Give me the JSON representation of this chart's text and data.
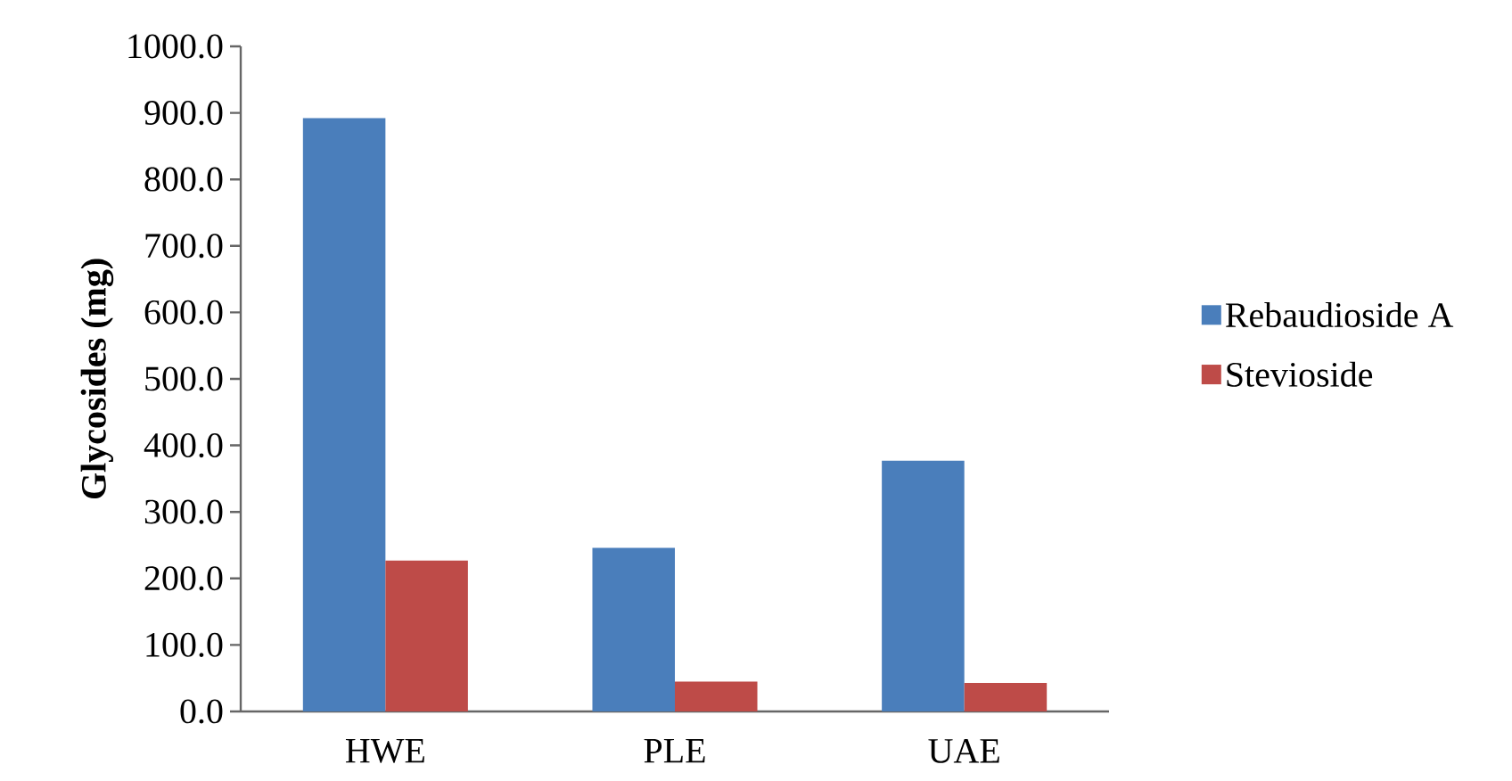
{
  "chart_data": {
    "type": "bar",
    "ylabel": "Glycosides (mg)",
    "categories": [
      "HWE",
      "PLE",
      "UAE"
    ],
    "series": [
      {
        "name": "Rebaudioside A",
        "color": "#4a7ebb",
        "values": [
          892,
          246,
          377
        ]
      },
      {
        "name": "Stevioside",
        "color": "#be4b48",
        "values": [
          227,
          45,
          43
        ]
      }
    ],
    "ylim": [
      0,
      1000
    ],
    "yticks": [
      {
        "value": 0,
        "label": "0.0"
      },
      {
        "value": 100,
        "label": "100.0"
      },
      {
        "value": 200,
        "label": "200.0"
      },
      {
        "value": 300,
        "label": "300.0"
      },
      {
        "value": 400,
        "label": "400.0"
      },
      {
        "value": 500,
        "label": "500.0"
      },
      {
        "value": 600,
        "label": "600.0"
      },
      {
        "value": 700,
        "label": "700.0"
      },
      {
        "value": 800,
        "label": "800.0"
      },
      {
        "value": 900,
        "label": "900.0"
      },
      {
        "value": 1000,
        "label": "1000.0"
      }
    ],
    "grid": false,
    "legend": "right"
  }
}
